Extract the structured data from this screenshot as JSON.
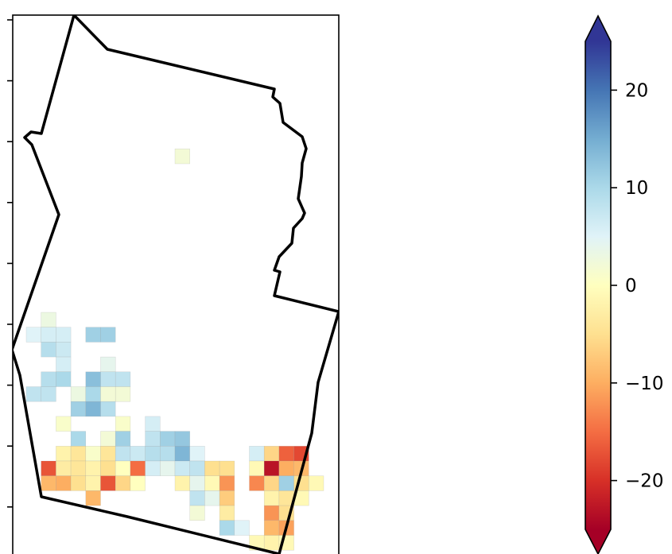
{
  "map": {
    "type": "gridded-heatmap-over-region-outline",
    "axis_ticks_left": 9,
    "cells": [
      {
        "col": 10,
        "row": 9,
        "value": 2
      },
      {
        "col": 1,
        "row": 20,
        "value": 3
      },
      {
        "col": 0,
        "row": 21,
        "value": 5
      },
      {
        "col": 1,
        "row": 21,
        "value": 6
      },
      {
        "col": 2,
        "row": 21,
        "value": 6
      },
      {
        "col": 4,
        "row": 21,
        "value": 11
      },
      {
        "col": 5,
        "row": 21,
        "value": 11
      },
      {
        "col": 1,
        "row": 22,
        "value": 9
      },
      {
        "col": 2,
        "row": 22,
        "value": 7
      },
      {
        "col": 2,
        "row": 23,
        "value": 6
      },
      {
        "col": 5,
        "row": 23,
        "value": 4
      },
      {
        "col": 1,
        "row": 24,
        "value": 9
      },
      {
        "col": 2,
        "row": 24,
        "value": 10
      },
      {
        "col": 4,
        "row": 24,
        "value": 13
      },
      {
        "col": 5,
        "row": 24,
        "value": 8
      },
      {
        "col": 6,
        "row": 24,
        "value": 8
      },
      {
        "col": 0,
        "row": 25,
        "value": 8
      },
      {
        "col": 1,
        "row": 25,
        "value": 8
      },
      {
        "col": 3,
        "row": 25,
        "value": 3
      },
      {
        "col": 4,
        "row": 25,
        "value": 10
      },
      {
        "col": 5,
        "row": 25,
        "value": 2
      },
      {
        "col": 6,
        "row": 25,
        "value": 2
      },
      {
        "col": 3,
        "row": 26,
        "value": 11
      },
      {
        "col": 4,
        "row": 26,
        "value": 14
      },
      {
        "col": 5,
        "row": 26,
        "value": 9
      },
      {
        "col": 2,
        "row": 27,
        "value": 1
      },
      {
        "col": 6,
        "row": 27,
        "value": 1
      },
      {
        "col": 8,
        "row": 27,
        "value": 6
      },
      {
        "col": 3,
        "row": 28,
        "value": 10
      },
      {
        "col": 5,
        "row": 28,
        "value": 2
      },
      {
        "col": 6,
        "row": 28,
        "value": 11
      },
      {
        "col": 8,
        "row": 28,
        "value": 8
      },
      {
        "col": 9,
        "row": 28,
        "value": 11
      },
      {
        "col": 10,
        "row": 28,
        "value": 12
      },
      {
        "col": 2,
        "row": 29,
        "value": -2
      },
      {
        "col": 3,
        "row": 29,
        "value": -4
      },
      {
        "col": 4,
        "row": 29,
        "value": 1
      },
      {
        "col": 5,
        "row": 29,
        "value": -4
      },
      {
        "col": 6,
        "row": 29,
        "value": 8
      },
      {
        "col": 7,
        "row": 29,
        "value": 7
      },
      {
        "col": 8,
        "row": 29,
        "value": 9
      },
      {
        "col": 9,
        "row": 29,
        "value": 9
      },
      {
        "col": 10,
        "row": 29,
        "value": 14
      },
      {
        "col": 11,
        "row": 29,
        "value": 5
      },
      {
        "col": 15,
        "row": 29,
        "value": 6
      },
      {
        "col": 16,
        "row": 29,
        "value": -6
      },
      {
        "col": 17,
        "row": 29,
        "value": -16
      },
      {
        "col": 18,
        "row": 29,
        "value": -18
      },
      {
        "col": 1,
        "row": 30,
        "value": -17
      },
      {
        "col": 2,
        "row": 30,
        "value": -3
      },
      {
        "col": 3,
        "row": 30,
        "value": -4
      },
      {
        "col": 4,
        "row": 30,
        "value": -2
      },
      {
        "col": 5,
        "row": 30,
        "value": -5
      },
      {
        "col": 6,
        "row": 30,
        "value": 0
      },
      {
        "col": 7,
        "row": 30,
        "value": -15
      },
      {
        "col": 8,
        "row": 30,
        "value": 6
      },
      {
        "col": 9,
        "row": 30,
        "value": 4
      },
      {
        "col": 10,
        "row": 30,
        "value": 7
      },
      {
        "col": 11,
        "row": 30,
        "value": 8
      },
      {
        "col": 12,
        "row": 30,
        "value": -5
      },
      {
        "col": 13,
        "row": 30,
        "value": -5
      },
      {
        "col": 15,
        "row": 30,
        "value": -1
      },
      {
        "col": 16,
        "row": 30,
        "value": -23
      },
      {
        "col": 17,
        "row": 30,
        "value": -10
      },
      {
        "col": 18,
        "row": 30,
        "value": -9
      },
      {
        "col": 1,
        "row": 31,
        "value": -9
      },
      {
        "col": 2,
        "row": 31,
        "value": -10
      },
      {
        "col": 3,
        "row": 31,
        "value": -5
      },
      {
        "col": 4,
        "row": 31,
        "value": -2
      },
      {
        "col": 5,
        "row": 31,
        "value": -17
      },
      {
        "col": 6,
        "row": 31,
        "value": -6
      },
      {
        "col": 7,
        "row": 31,
        "value": 0
      },
      {
        "col": 10,
        "row": 31,
        "value": -2
      },
      {
        "col": 11,
        "row": 31,
        "value": 4
      },
      {
        "col": 12,
        "row": 31,
        "value": -1
      },
      {
        "col": 13,
        "row": 31,
        "value": -12
      },
      {
        "col": 15,
        "row": 31,
        "value": -13
      },
      {
        "col": 16,
        "row": 31,
        "value": -6
      },
      {
        "col": 17,
        "row": 31,
        "value": 11
      },
      {
        "col": 18,
        "row": 31,
        "value": -5
      },
      {
        "col": 19,
        "row": 31,
        "value": -1
      },
      {
        "col": 4,
        "row": 32,
        "value": -9
      },
      {
        "col": 11,
        "row": 32,
        "value": 8
      },
      {
        "col": 12,
        "row": 32,
        "value": 4
      },
      {
        "col": 13,
        "row": 32,
        "value": -7
      },
      {
        "col": 16,
        "row": 32,
        "value": -2
      },
      {
        "col": 17,
        "row": 32,
        "value": -4
      },
      {
        "col": 18,
        "row": 32,
        "value": -1
      },
      {
        "col": 11,
        "row": 33,
        "value": 2
      },
      {
        "col": 13,
        "row": 33,
        "value": -3
      },
      {
        "col": 16,
        "row": 33,
        "value": -12
      },
      {
        "col": 17,
        "row": 33,
        "value": -5
      },
      {
        "col": 13,
        "row": 34,
        "value": 10
      },
      {
        "col": 14,
        "row": 34,
        "value": 5
      },
      {
        "col": 16,
        "row": 34,
        "value": -9
      },
      {
        "col": 17,
        "row": 34,
        "value": -11
      },
      {
        "col": 15,
        "row": 35,
        "value": -1
      },
      {
        "col": 16,
        "row": 35,
        "value": -2
      },
      {
        "col": 17,
        "row": 35,
        "value": -1
      }
    ]
  },
  "colorbar": {
    "colormap": "RdYlBu",
    "vmin": -25,
    "vmax": 25,
    "extend": "both",
    "ticks": [
      {
        "value": 20,
        "label": "20"
      },
      {
        "value": 10,
        "label": "10"
      },
      {
        "value": 0,
        "label": "0"
      },
      {
        "value": -10,
        "label": "−10"
      },
      {
        "value": -20,
        "label": "−20"
      }
    ],
    "stops": [
      "#a50026",
      "#d73027",
      "#f46d43",
      "#fdae61",
      "#fee090",
      "#ffffbf",
      "#e0f3f8",
      "#abd9e9",
      "#74add1",
      "#4575b4",
      "#313695"
    ]
  }
}
